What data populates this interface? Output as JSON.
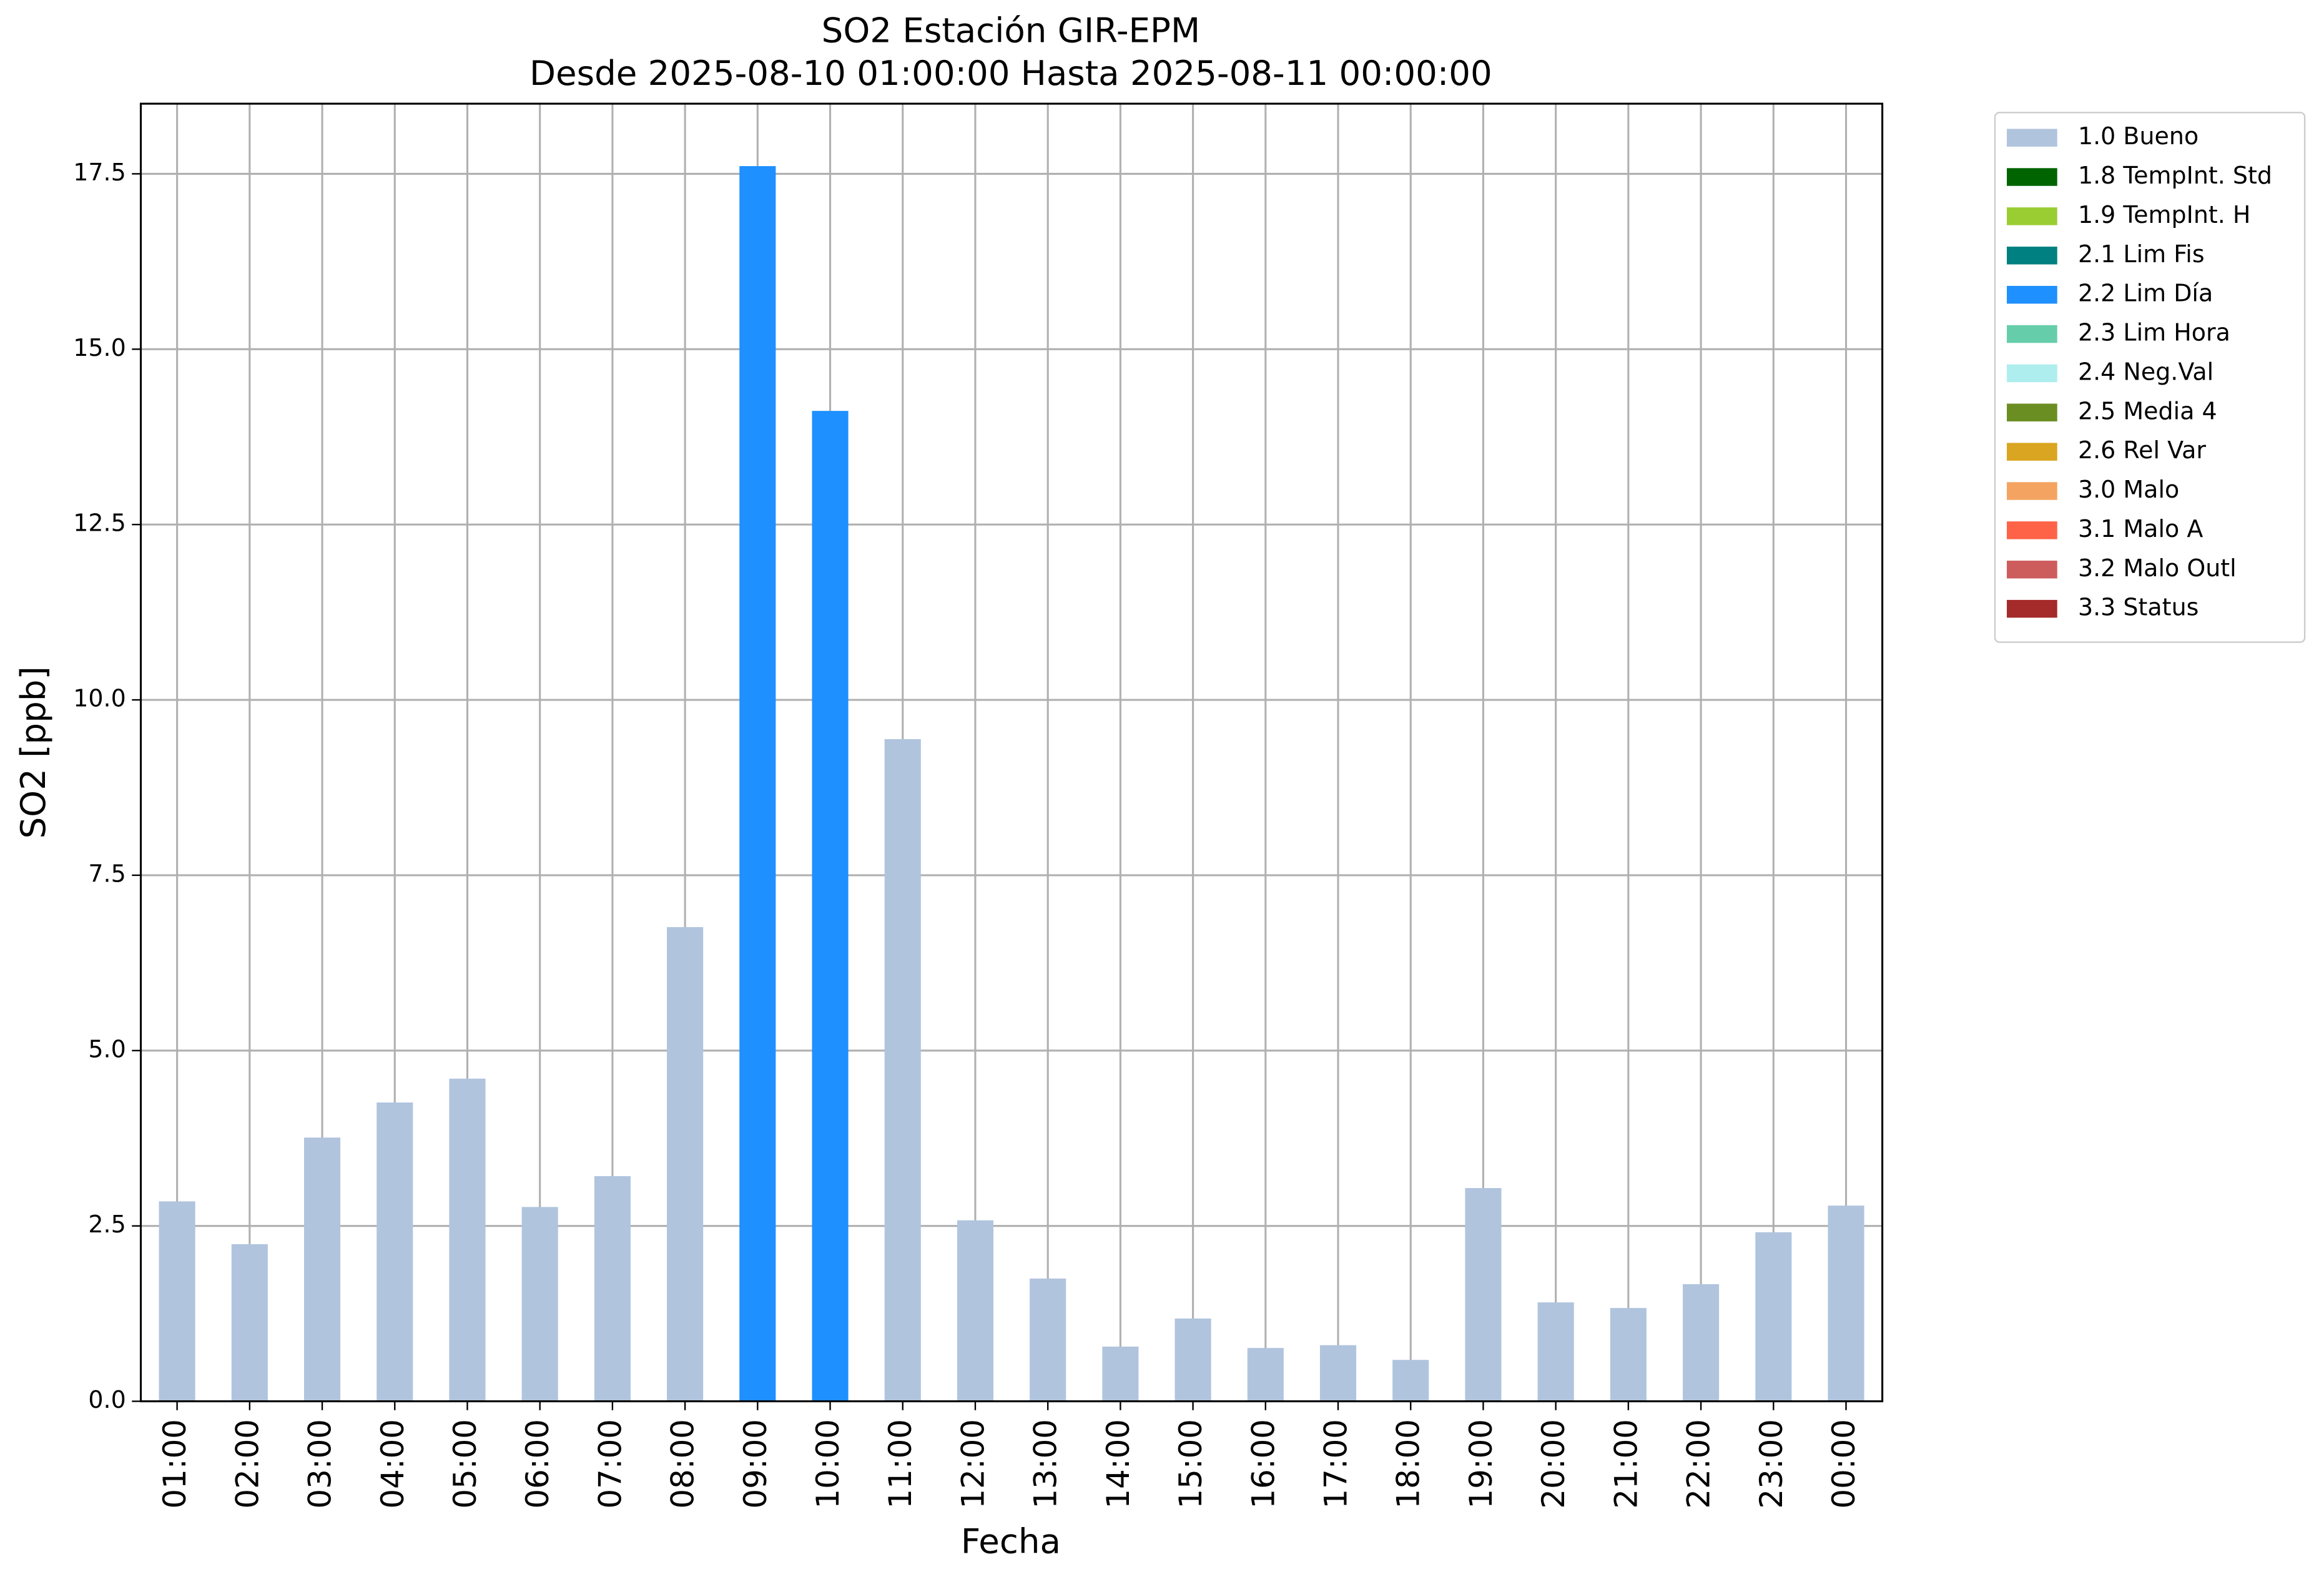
{
  "chart_data": {
    "type": "stacked-bar",
    "title": "SO2 Estación GIR-EPM",
    "subtitle": "Desde 2025-08-10 01:00:00 Hasta 2025-08-11 00:00:00",
    "x_label": "Fecha",
    "y_label": "SO2 [ppb]",
    "categories": [
      "01:00",
      "02:00",
      "03:00",
      "04:00",
      "05:00",
      "06:00",
      "07:00",
      "08:00",
      "09:00",
      "10:00",
      "11:00",
      "12:00",
      "13:00",
      "14:00",
      "15:00",
      "16:00",
      "17:00",
      "18:00",
      "19:00",
      "20:00",
      "21:00",
      "22:00",
      "23:00",
      "00:00"
    ],
    "series": [
      {
        "name": "1.0 Bueno",
        "color": "#b0c4de",
        "values": [
          2.85,
          2.24,
          3.76,
          4.26,
          4.6,
          2.77,
          3.21,
          6.76,
          null,
          null,
          9.44,
          2.58,
          1.75,
          0.78,
          1.18,
          0.76,
          0.8,
          0.59,
          3.04,
          1.41,
          1.33,
          1.67,
          2.41,
          2.79
        ]
      },
      {
        "name": "1.8 TempInt. Std",
        "color": "#006400",
        "values": [
          null,
          null,
          null,
          null,
          null,
          null,
          null,
          null,
          null,
          null,
          null,
          null,
          null,
          null,
          null,
          null,
          null,
          null,
          null,
          null,
          null,
          null,
          null,
          null
        ]
      },
      {
        "name": "1.9 TempInt. H",
        "color": "#9acd32",
        "values": [
          null,
          null,
          null,
          null,
          null,
          null,
          null,
          null,
          null,
          null,
          null,
          null,
          null,
          null,
          null,
          null,
          null,
          null,
          null,
          null,
          null,
          null,
          null,
          null
        ]
      },
      {
        "name": "2.1 Lim Fis",
        "color": "#008080",
        "values": [
          null,
          null,
          null,
          null,
          null,
          null,
          null,
          null,
          null,
          null,
          null,
          null,
          null,
          null,
          null,
          null,
          null,
          null,
          null,
          null,
          null,
          null,
          null,
          null
        ]
      },
      {
        "name": "2.2 Lim Día",
        "color": "#1e90ff",
        "values": [
          null,
          null,
          null,
          null,
          null,
          null,
          null,
          null,
          17.61,
          14.12,
          null,
          null,
          null,
          null,
          null,
          null,
          null,
          null,
          null,
          null,
          null,
          null,
          null,
          null
        ]
      },
      {
        "name": "2.3 Lim Hora",
        "color": "#66cdaa",
        "values": [
          null,
          null,
          null,
          null,
          null,
          null,
          null,
          null,
          null,
          null,
          null,
          null,
          null,
          null,
          null,
          null,
          null,
          null,
          null,
          null,
          null,
          null,
          null,
          null
        ]
      },
      {
        "name": "2.4 Neg.Val",
        "color": "#afeeee",
        "values": [
          null,
          null,
          null,
          null,
          null,
          null,
          null,
          null,
          null,
          null,
          null,
          null,
          null,
          null,
          null,
          null,
          null,
          null,
          null,
          null,
          null,
          null,
          null,
          null
        ]
      },
      {
        "name": "2.5 Media 4",
        "color": "#6b8e23",
        "values": [
          null,
          null,
          null,
          null,
          null,
          null,
          null,
          null,
          null,
          null,
          null,
          null,
          null,
          null,
          null,
          null,
          null,
          null,
          null,
          null,
          null,
          null,
          null,
          null
        ]
      },
      {
        "name": "2.6 Rel Var",
        "color": "#daa520",
        "values": [
          null,
          null,
          null,
          null,
          null,
          null,
          null,
          null,
          null,
          null,
          null,
          null,
          null,
          null,
          null,
          null,
          null,
          null,
          null,
          null,
          null,
          null,
          null,
          null
        ]
      },
      {
        "name": "3.0 Malo",
        "color": "#f4a460",
        "values": [
          null,
          null,
          null,
          null,
          null,
          null,
          null,
          null,
          null,
          null,
          null,
          null,
          null,
          null,
          null,
          null,
          null,
          null,
          null,
          null,
          null,
          null,
          null,
          null
        ]
      },
      {
        "name": "3.1 Malo A",
        "color": "#ff6347",
        "values": [
          null,
          null,
          null,
          null,
          null,
          null,
          null,
          null,
          null,
          null,
          null,
          null,
          null,
          null,
          null,
          null,
          null,
          null,
          null,
          null,
          null,
          null,
          null,
          null
        ]
      },
      {
        "name": "3.2 Malo Outl",
        "color": "#cd5c5c",
        "values": [
          null,
          null,
          null,
          null,
          null,
          null,
          null,
          null,
          null,
          null,
          null,
          null,
          null,
          null,
          null,
          null,
          null,
          null,
          null,
          null,
          null,
          null,
          null,
          null
        ]
      },
      {
        "name": "3.3 Status",
        "color": "#a52a2a",
        "values": [
          null,
          null,
          null,
          null,
          null,
          null,
          null,
          null,
          null,
          null,
          null,
          null,
          null,
          null,
          null,
          null,
          null,
          null,
          null,
          null,
          null,
          null,
          null,
          null
        ]
      }
    ],
    "ylim": [
      0,
      18.5
    ],
    "yticks": [
      {
        "value": 0,
        "label": "0.0"
      },
      2.5,
      {
        "value": 5,
        "label": "5.0"
      },
      7.5,
      {
        "value": 10,
        "label": "10.0"
      },
      12.5,
      {
        "value": 15,
        "label": "15.0"
      },
      17.5
    ],
    "grid": true,
    "legend": "outside-upper-right"
  }
}
